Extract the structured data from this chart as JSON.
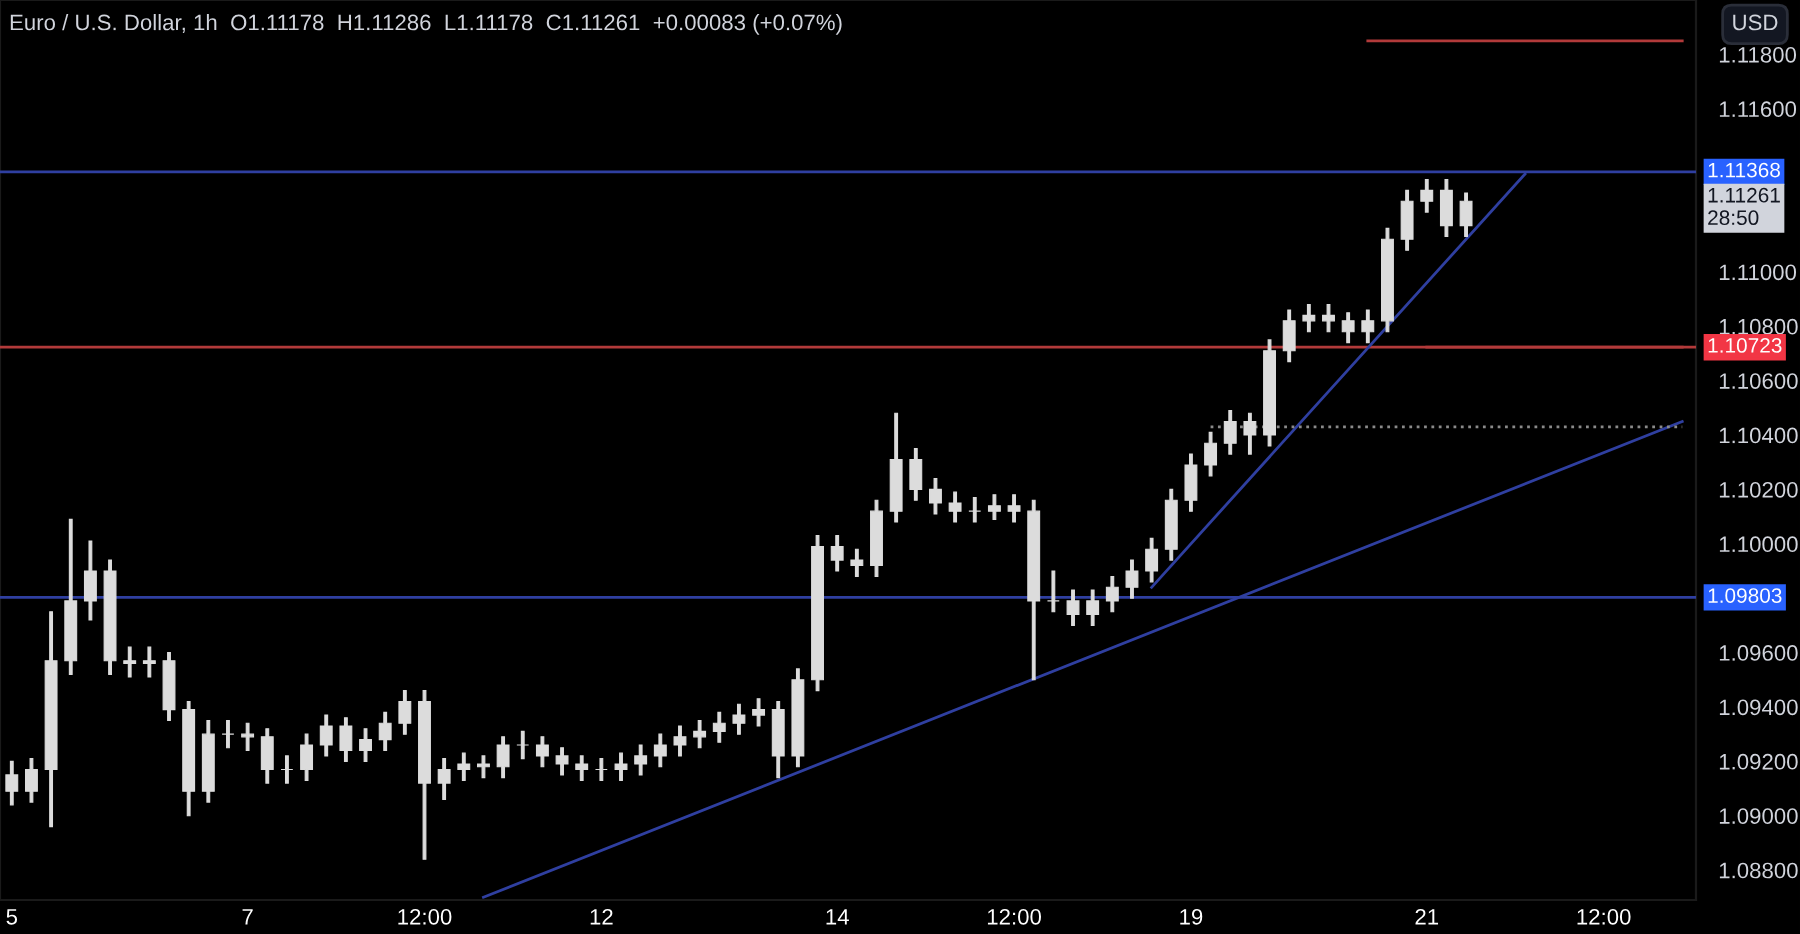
{
  "chart_data": {
    "type": "candlestick",
    "title": "Euro / U.S. Dollar, 1h  O1.11178  H1.11286  L1.11178  C1.11261  +0.00083 (+0.07%)",
    "categories": [
      "5",
      null,
      null,
      null,
      null,
      null,
      null,
      null,
      null,
      null,
      null,
      null,
      "7",
      null,
      null,
      null,
      null,
      null,
      null,
      null,
      null,
      "12:00",
      null,
      null,
      null,
      null,
      null,
      null,
      null,
      null,
      "12",
      null,
      null,
      null,
      null,
      null,
      null,
      null,
      null,
      null,
      null,
      null,
      "14",
      null,
      null,
      null,
      null,
      null,
      null,
      null,
      null,
      "12:00",
      null,
      null,
      null,
      null,
      null,
      null,
      null,
      null,
      "19",
      null,
      null,
      null,
      null,
      null,
      null,
      null,
      null,
      null,
      null,
      null,
      "21",
      null,
      null,
      null,
      null,
      null,
      null,
      null,
      null,
      "12:00",
      null,
      null,
      null,
      null
    ],
    "ylim": [
      1.0869,
      1.12
    ],
    "yticks": [
      {
        "value": 1.088,
        "label": "1.08800"
      },
      {
        "value": 1.09,
        "label": "1.09000"
      },
      {
        "value": 1.092,
        "label": "1.09200"
      },
      {
        "value": 1.094,
        "label": "1.09400"
      },
      {
        "value": 1.096,
        "label": "1.09600"
      },
      {
        "value": 1.1,
        "label": "1.10000"
      },
      {
        "value": 1.102,
        "label": "1.10200"
      },
      {
        "value": 1.104,
        "label": "1.10400"
      },
      {
        "value": 1.106,
        "label": "1.10600"
      },
      {
        "value": 1.108,
        "label": "1.10800"
      },
      {
        "value": 1.11,
        "label": "1.11000"
      },
      {
        "value": 1.116,
        "label": "1.11600"
      },
      {
        "value": 1.118,
        "label": "1.11800"
      }
    ],
    "grid": false,
    "series": [
      {
        "type": "candlestick",
        "color": "#dcdcdc",
        "ohlc": [
          [
            1.0915,
            1.092,
            1.0904,
            1.0909
          ],
          [
            1.0909,
            1.0921,
            1.0905,
            1.0917
          ],
          [
            1.0917,
            1.0975,
            1.0896,
            1.0957
          ],
          [
            1.0957,
            1.1009,
            1.0952,
            1.0979
          ],
          [
            1.0979,
            1.1001,
            1.0972,
            1.099
          ],
          [
            1.099,
            1.0994,
            1.0952,
            1.0957
          ],
          [
            1.0957,
            1.0962,
            1.0951,
            1.0956
          ],
          [
            1.0956,
            1.0962,
            1.0951,
            1.0957
          ],
          [
            1.0957,
            1.096,
            1.0935,
            1.0939
          ],
          [
            1.0939,
            1.0942,
            1.09,
            1.0909
          ],
          [
            1.0909,
            1.0935,
            1.0905,
            1.093
          ],
          [
            1.093,
            1.0935,
            1.0925,
            1.093
          ],
          [
            1.093,
            1.0934,
            1.0924,
            1.0929
          ],
          [
            1.0929,
            1.0932,
            1.0912,
            1.0917
          ],
          [
            1.0917,
            1.0922,
            1.0912,
            1.0917
          ],
          [
            1.0917,
            1.093,
            1.0913,
            1.0926
          ],
          [
            1.0926,
            1.0937,
            1.0922,
            1.0933
          ],
          [
            1.0933,
            1.0936,
            1.092,
            1.0924
          ],
          [
            1.0924,
            1.0932,
            1.092,
            1.0928
          ],
          [
            1.0928,
            1.0938,
            1.0924,
            1.0934
          ],
          [
            1.0934,
            1.0946,
            1.093,
            1.0942
          ],
          [
            1.0942,
            1.0946,
            1.0884,
            1.0912
          ],
          [
            1.0912,
            1.0921,
            1.0906,
            1.0917
          ],
          [
            1.0917,
            1.0923,
            1.0913,
            1.0919
          ],
          [
            1.0919,
            1.0922,
            1.0914,
            1.0918
          ],
          [
            1.0918,
            1.0929,
            1.0914,
            1.0926
          ],
          [
            1.0926,
            1.0931,
            1.0921,
            1.0926
          ],
          [
            1.0926,
            1.0929,
            1.0918,
            1.0922
          ],
          [
            1.0922,
            1.0925,
            1.0915,
            1.0919
          ],
          [
            1.0919,
            1.0922,
            1.0913,
            1.0917
          ],
          [
            1.0917,
            1.0921,
            1.0913,
            1.0917
          ],
          [
            1.0917,
            1.0923,
            1.0913,
            1.0919
          ],
          [
            1.0919,
            1.0926,
            1.0915,
            1.0922
          ],
          [
            1.0922,
            1.093,
            1.0918,
            1.0926
          ],
          [
            1.0926,
            1.0933,
            1.0922,
            1.0929
          ],
          [
            1.0929,
            1.0935,
            1.0925,
            1.0931
          ],
          [
            1.0931,
            1.0938,
            1.0927,
            1.0934
          ],
          [
            1.0934,
            1.0941,
            1.093,
            1.0937
          ],
          [
            1.0937,
            1.0943,
            1.0933,
            1.0939
          ],
          [
            1.0939,
            1.0942,
            1.0914,
            1.0922
          ],
          [
            1.0922,
            1.0954,
            1.0918,
            1.095
          ],
          [
            1.095,
            1.1003,
            1.0946,
            1.0999
          ],
          [
            1.0999,
            1.1003,
            1.099,
            1.0994
          ],
          [
            1.0994,
            1.0998,
            1.0988,
            1.0992
          ],
          [
            1.0992,
            1.1016,
            1.0988,
            1.1012
          ],
          [
            1.1012,
            1.1048,
            1.1008,
            1.1031
          ],
          [
            1.1031,
            1.1035,
            1.1016,
            1.102
          ],
          [
            1.102,
            1.1024,
            1.1011,
            1.1015
          ],
          [
            1.1015,
            1.1019,
            1.1008,
            1.1012
          ],
          [
            1.1012,
            1.1017,
            1.1008,
            1.1012
          ],
          [
            1.1012,
            1.1018,
            1.1009,
            1.1014
          ],
          [
            1.1014,
            1.1018,
            1.1008,
            1.1012
          ],
          [
            1.1012,
            1.1016,
            1.095,
            1.0979
          ],
          [
            1.0979,
            1.099,
            1.0975,
            1.0979
          ],
          [
            1.0979,
            1.0983,
            1.097,
            1.0974
          ],
          [
            1.0974,
            1.0983,
            1.097,
            1.0979
          ],
          [
            1.0979,
            1.0988,
            1.0975,
            1.0984
          ],
          [
            1.0984,
            1.0994,
            1.098,
            1.099
          ],
          [
            1.099,
            1.1002,
            1.0986,
            1.0998
          ],
          [
            1.0998,
            1.102,
            1.0994,
            1.1016
          ],
          [
            1.1016,
            1.1033,
            1.1012,
            1.1029
          ],
          [
            1.1029,
            1.1041,
            1.1025,
            1.1037
          ],
          [
            1.1037,
            1.1049,
            1.1033,
            1.1045
          ],
          [
            1.1045,
            1.1048,
            1.1033,
            1.104
          ],
          [
            1.104,
            1.1075,
            1.1036,
            1.1071
          ],
          [
            1.1071,
            1.1086,
            1.1067,
            1.1082
          ],
          [
            1.1082,
            1.1088,
            1.1078,
            1.1084
          ],
          [
            1.1084,
            1.1088,
            1.1078,
            1.1082
          ],
          [
            1.1082,
            1.1085,
            1.1074,
            1.1078
          ],
          [
            1.1078,
            1.1086,
            1.1074,
            1.1082
          ],
          [
            1.1082,
            1.1116,
            1.1078,
            1.1112
          ],
          [
            1.1112,
            1.113,
            1.1108,
            1.1126
          ],
          [
            1.1126,
            1.1134,
            1.1122,
            1.113
          ],
          [
            1.113,
            1.1134,
            1.1113,
            1.1117
          ],
          [
            1.1117,
            1.1129,
            1.1113,
            1.1126
          ],
          null,
          null,
          null,
          null,
          null,
          null,
          null,
          null,
          null,
          null,
          null
        ]
      },
      {
        "type": "line",
        "color": "#2f3fa0",
        "line_style": "solid",
        "values": [
          null,
          null,
          null,
          null,
          null,
          null,
          null,
          null,
          null,
          null,
          null,
          null,
          null,
          null,
          null,
          null,
          null,
          null,
          null,
          null,
          null,
          null,
          null,
          null,
          1.087,
          null,
          null,
          null,
          null,
          null,
          null,
          null,
          null,
          null,
          null,
          null,
          null,
          null,
          null,
          null,
          null,
          null,
          null,
          null,
          null,
          null,
          null,
          null,
          null,
          null,
          null,
          null,
          null,
          null,
          null,
          null,
          null,
          null,
          null,
          null,
          null,
          null,
          null,
          null,
          null,
          null,
          null,
          null,
          null,
          null,
          null,
          null,
          null,
          null,
          null,
          null,
          null,
          null,
          null,
          null,
          null,
          null,
          null,
          null,
          null,
          1.1045
        ]
      },
      {
        "type": "line",
        "color": "#2f3fa0",
        "line_style": "solid",
        "values": [
          null,
          null,
          null,
          null,
          null,
          null,
          null,
          null,
          null,
          null,
          null,
          null,
          null,
          null,
          null,
          null,
          null,
          null,
          null,
          null,
          null,
          null,
          null,
          null,
          null,
          null,
          null,
          null,
          null,
          null,
          null,
          null,
          null,
          null,
          null,
          null,
          null,
          null,
          null,
          null,
          null,
          null,
          null,
          null,
          null,
          null,
          null,
          null,
          null,
          null,
          null,
          null,
          null,
          null,
          null,
          null,
          null,
          null,
          1.0984,
          null,
          null,
          null,
          null,
          null,
          null,
          null,
          null,
          null,
          null,
          null,
          null,
          null,
          null,
          null,
          null,
          null,
          null,
          1.1136,
          null,
          null,
          null,
          null,
          null,
          null,
          null,
          null
        ]
      },
      {
        "type": "line",
        "color": "#b23a3a",
        "line_style": "solid",
        "values": [
          null,
          null,
          null,
          null,
          null,
          null,
          null,
          null,
          null,
          null,
          null,
          null,
          null,
          null,
          null,
          null,
          null,
          null,
          null,
          null,
          null,
          null,
          null,
          null,
          null,
          null,
          null,
          null,
          null,
          null,
          null,
          null,
          null,
          null,
          null,
          null,
          null,
          null,
          null,
          null,
          null,
          null,
          null,
          null,
          null,
          null,
          null,
          null,
          null,
          null,
          null,
          null,
          null,
          null,
          null,
          null,
          null,
          null,
          null,
          null,
          null,
          null,
          null,
          null,
          null,
          null,
          null,
          null,
          null,
          null,
          null,
          null,
          1.10723,
          null,
          null,
          null,
          null,
          null,
          null,
          null,
          null,
          null,
          null,
          null,
          null,
          1.10723
        ]
      },
      {
        "type": "line",
        "color": "#b23a3a",
        "line_style": "solid",
        "values": [
          null,
          null,
          null,
          null,
          null,
          null,
          null,
          null,
          null,
          null,
          null,
          null,
          null,
          null,
          null,
          null,
          null,
          null,
          null,
          null,
          null,
          null,
          null,
          null,
          null,
          null,
          null,
          null,
          null,
          null,
          null,
          null,
          null,
          null,
          null,
          null,
          null,
          null,
          null,
          null,
          null,
          null,
          null,
          null,
          null,
          null,
          null,
          null,
          null,
          null,
          null,
          null,
          null,
          null,
          null,
          null,
          null,
          null,
          null,
          null,
          null,
          null,
          null,
          null,
          null,
          null,
          null,
          null,
          null,
          1.1185,
          null,
          null,
          null,
          null,
          null,
          null,
          null,
          null,
          null,
          null,
          null,
          null,
          null,
          null,
          null,
          1.1185
        ]
      },
      {
        "type": "line",
        "color": "#8a8a8a",
        "line_style": "dotted",
        "values": [
          null,
          null,
          null,
          null,
          null,
          null,
          null,
          null,
          null,
          null,
          null,
          null,
          null,
          null,
          null,
          null,
          null,
          null,
          null,
          null,
          null,
          null,
          null,
          null,
          null,
          null,
          null,
          null,
          null,
          null,
          null,
          null,
          null,
          null,
          null,
          null,
          null,
          null,
          null,
          null,
          null,
          null,
          null,
          null,
          null,
          null,
          null,
          null,
          null,
          null,
          null,
          null,
          null,
          null,
          null,
          null,
          null,
          null,
          null,
          null,
          null,
          1.1043,
          null,
          null,
          null,
          null,
          null,
          null,
          null,
          null,
          null,
          null,
          null,
          null,
          null,
          null,
          null,
          null,
          null,
          null,
          null,
          null,
          null,
          null,
          null,
          1.1043
        ]
      }
    ],
    "ref_lines": [
      {
        "axis": "y",
        "value": 1.11368,
        "label": "1.11368",
        "color": "#2f3fa0"
      },
      {
        "axis": "y",
        "value": 1.09803,
        "label": "1.09803",
        "color": "#2f3fa0"
      },
      {
        "axis": "y",
        "value": 1.10723,
        "label": "1.10723",
        "color": "#b23a3a"
      }
    ],
    "annotations": [
      "USD",
      "1.11261\n28:50"
    ]
  }
}
